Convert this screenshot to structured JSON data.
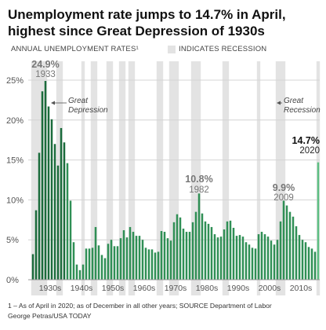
{
  "title_lines": [
    "Unemployment rate jumps to 14.7% in April,",
    "highest since Great Depression of 1930s"
  ],
  "subtitle": "ANNUAL UNEMPLOYMENT RATES¹",
  "recession_legend": "INDICATES RECESSION",
  "footnote": "1 – As of April in 2020; as of December in all other years; SOURCE Department of Labor",
  "credit": "George Petras/USA TODAY",
  "colors": {
    "bar": "#2f8f55",
    "bar_dark": "#1a6b3b",
    "bar_highlight": "#5cbf82",
    "recession": "#e3e3e3",
    "grid": "#d4d4d4"
  },
  "chart_data": {
    "type": "bar",
    "x": [
      1929,
      1930,
      1931,
      1932,
      1933,
      1934,
      1935,
      1936,
      1937,
      1938,
      1939,
      1940,
      1941,
      1942,
      1943,
      1944,
      1945,
      1946,
      1947,
      1948,
      1949,
      1950,
      1951,
      1952,
      1953,
      1954,
      1955,
      1956,
      1957,
      1958,
      1959,
      1960,
      1961,
      1962,
      1963,
      1964,
      1965,
      1966,
      1967,
      1968,
      1969,
      1970,
      1971,
      1972,
      1973,
      1974,
      1975,
      1976,
      1977,
      1978,
      1979,
      1980,
      1981,
      1982,
      1983,
      1984,
      1985,
      1986,
      1987,
      1988,
      1989,
      1990,
      1991,
      1992,
      1993,
      1994,
      1995,
      1996,
      1997,
      1998,
      1999,
      2000,
      2001,
      2002,
      2003,
      2004,
      2005,
      2006,
      2007,
      2008,
      2009,
      2010,
      2011,
      2012,
      2013,
      2014,
      2015,
      2016,
      2017,
      2018,
      2019,
      2020
    ],
    "values": [
      3.2,
      8.7,
      15.9,
      23.6,
      24.9,
      21.7,
      20.1,
      17.0,
      14.3,
      19.0,
      17.2,
      14.6,
      9.9,
      4.7,
      1.9,
      1.2,
      1.9,
      3.9,
      3.9,
      4.0,
      6.6,
      4.3,
      3.1,
      2.7,
      4.5,
      5.0,
      4.2,
      4.2,
      5.2,
      6.2,
      5.3,
      6.6,
      6.0,
      5.5,
      5.5,
      5.0,
      4.0,
      3.8,
      3.8,
      3.4,
      3.5,
      6.1,
      6.0,
      5.2,
      4.9,
      7.2,
      8.2,
      7.8,
      6.4,
      6.0,
      6.0,
      7.2,
      8.5,
      10.8,
      8.3,
      7.3,
      7.0,
      6.6,
      5.7,
      5.3,
      5.4,
      6.3,
      7.3,
      7.4,
      6.5,
      5.5,
      5.6,
      5.4,
      4.7,
      4.4,
      4.0,
      3.9,
      5.7,
      6.0,
      5.7,
      5.4,
      4.9,
      4.4,
      5.0,
      7.3,
      9.9,
      9.3,
      8.5,
      7.9,
      6.7,
      5.6,
      5.0,
      4.7,
      4.1,
      3.9,
      3.5,
      14.7
    ],
    "recessions": [
      [
        1929,
        1933
      ],
      [
        1937,
        1938
      ],
      [
        1945,
        1945
      ],
      [
        1948,
        1949
      ],
      [
        1953,
        1954
      ],
      [
        1957,
        1958
      ],
      [
        1960,
        1961
      ],
      [
        1969,
        1970
      ],
      [
        1973,
        1975
      ],
      [
        1980,
        1982
      ],
      [
        1990,
        1991
      ],
      [
        2001,
        2001
      ],
      [
        2007,
        2009
      ],
      [
        2020,
        2020
      ]
    ],
    "ylim": [
      0,
      25
    ],
    "yticks": [
      "0%",
      "5%",
      "10%",
      "15%",
      "20%",
      "25%"
    ],
    "ytick_values": [
      0,
      5,
      10,
      15,
      20,
      25
    ],
    "xtick_labels": [
      "1930s",
      "1940s",
      "1950s",
      "1960s",
      "1970s",
      "1980s",
      "1990s",
      "2000s",
      "2010s"
    ],
    "xtick_decades": [
      1930,
      1940,
      1950,
      1960,
      1970,
      1980,
      1990,
      2000,
      2010
    ],
    "callouts": [
      {
        "year": 1933,
        "value": "24.9%",
        "label": "1933"
      },
      {
        "year": 1982,
        "value": "10.8%",
        "label": "1982"
      },
      {
        "year": 2009,
        "value": "9.9%",
        "label": "2009"
      },
      {
        "year": 2020,
        "value": "14.7%",
        "label": "2020"
      }
    ],
    "annotations": [
      {
        "year": 1933,
        "lines": [
          "Great",
          "Depression"
        ]
      },
      {
        "year": 2008,
        "lines": [
          "Great",
          "Recession"
        ]
      }
    ]
  }
}
